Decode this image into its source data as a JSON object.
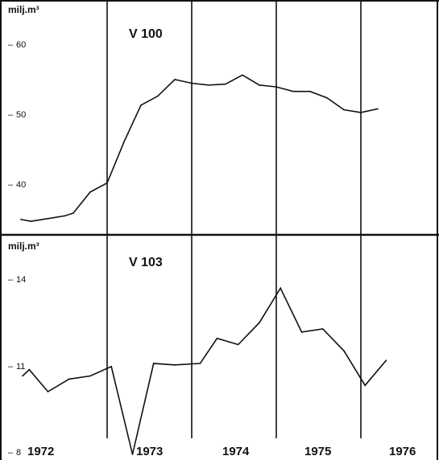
{
  "chart_data": [
    {
      "type": "line",
      "title": "V 100",
      "ylabel": "milj.m³",
      "yticks": [
        "60",
        "50",
        "40"
      ],
      "ylim": [
        37,
        62.5
      ],
      "x_year_start": 1972,
      "x": [
        1971.98,
        1972.1,
        1972.3,
        1972.5,
        1972.6,
        1972.8,
        1973.0,
        1973.2,
        1973.4,
        1973.6,
        1973.8,
        1974.0,
        1974.2,
        1974.4,
        1974.6,
        1974.8,
        1975.0,
        1975.2,
        1975.4,
        1975.6,
        1975.8,
        1976.0,
        1976.2
      ],
      "values": [
        38.5,
        38.3,
        38.6,
        38.9,
        39.2,
        41.5,
        42.5,
        47,
        51,
        52,
        53.8,
        53.4,
        53.2,
        53.3,
        54.3,
        53.2,
        53,
        52.5,
        52.5,
        51.8,
        50.5,
        50.2,
        50.6
      ],
      "grid": false
    },
    {
      "type": "line",
      "title": "V 103",
      "ylabel": "milj.m³",
      "yticks": [
        "14",
        "11",
        "8"
      ],
      "ylim": [
        7.92,
        15.1
      ],
      "x": [
        1972.0,
        1972.08,
        1972.3,
        1972.55,
        1972.8,
        1973.05,
        1973.3,
        1973.55,
        1973.8,
        1974.1,
        1974.3,
        1974.55,
        1974.8,
        1975.05,
        1975.3,
        1975.55,
        1975.8,
        1976.05,
        1976.3
      ],
      "values": [
        10.6,
        10.8,
        10.1,
        10.5,
        10.6,
        10.9,
        8.1,
        11.0,
        10.95,
        11.0,
        11.8,
        11.6,
        12.3,
        13.4,
        12.0,
        12.1,
        11.4,
        10.3,
        11.1
      ],
      "grid": false
    }
  ],
  "x_axis": {
    "year_labels": [
      "1972",
      "1973",
      "1974",
      "1975",
      "1976"
    ]
  },
  "colors": {
    "line": "#111111",
    "background": "#ffffff"
  }
}
